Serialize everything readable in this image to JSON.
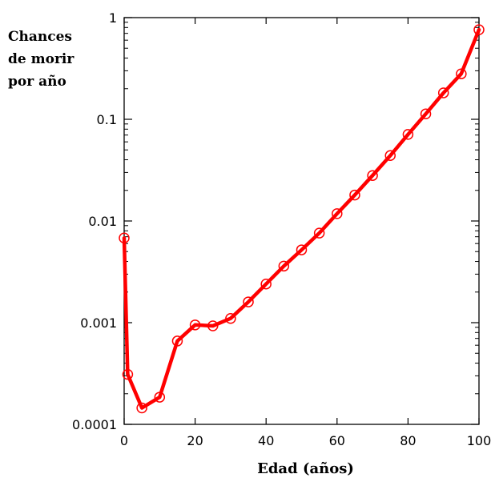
{
  "chart_data": {
    "type": "line",
    "title": "",
    "ylabel_lines": [
      "Chances",
      "de morir",
      "por año"
    ],
    "xlabel": "Edad (años)",
    "xlim": [
      0,
      100
    ],
    "ylim": [
      0.0001,
      1
    ],
    "yscale": "log",
    "grid": false,
    "x_ticks": [
      "0",
      "20",
      "40",
      "60",
      "80",
      "100"
    ],
    "y_ticks": [
      "0.0001",
      "0.001",
      "0.01",
      "0.1",
      "1"
    ],
    "series": [
      {
        "color": "#ff0000",
        "marker": "circle",
        "x": [
          0,
          1,
          5,
          10,
          15,
          20,
          25,
          30,
          35,
          40,
          45,
          50,
          55,
          60,
          65,
          70,
          75,
          80,
          85,
          90,
          95,
          100
        ],
        "y": [
          0.0068,
          0.00031,
          0.000145,
          0.000185,
          0.00066,
          0.00095,
          0.00093,
          0.0011,
          0.0016,
          0.0024,
          0.0036,
          0.0052,
          0.0076,
          0.0118,
          0.018,
          0.028,
          0.044,
          0.071,
          0.113,
          0.182,
          0.28,
          0.76
        ]
      }
    ]
  }
}
